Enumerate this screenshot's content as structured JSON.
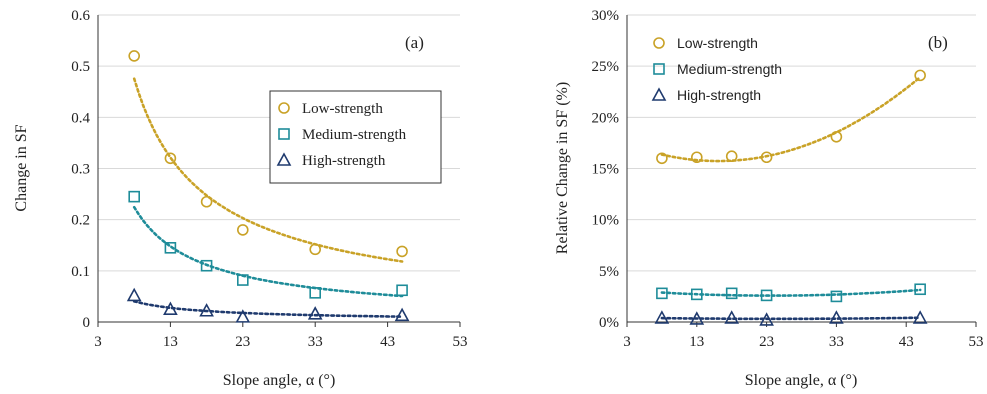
{
  "chart_data": [
    {
      "type": "scatter",
      "panel_label": "(a)",
      "xlabel": "Slope angle, α (°)",
      "ylabel": "Change in SF",
      "xlim": [
        3,
        53
      ],
      "ylim": [
        0,
        0.6
      ],
      "xticks": [
        "3",
        "13",
        "23",
        "33",
        "43",
        "53"
      ],
      "yticks": [
        "0",
        "0.1",
        "0.2",
        "0.3",
        "0.4",
        "0.5",
        "0.6"
      ],
      "legend_position": "center-right",
      "trendlines": "dotted",
      "series": [
        {
          "name": "Low-strength",
          "marker": "circle",
          "color": "#C9A227",
          "x": [
            8,
            13,
            18,
            23,
            33,
            45
          ],
          "y": [
            0.52,
            0.32,
            0.235,
            0.18,
            0.142,
            0.138
          ]
        },
        {
          "name": "Medium-strength",
          "marker": "square",
          "color": "#1E8C99",
          "x": [
            8,
            13,
            18,
            23,
            33,
            45
          ],
          "y": [
            0.245,
            0.145,
            0.11,
            0.082,
            0.057,
            0.062
          ]
        },
        {
          "name": "High-strength",
          "marker": "triangle",
          "color": "#1F3A6E",
          "x": [
            8,
            13,
            18,
            23,
            33,
            45
          ],
          "y": [
            0.052,
            0.025,
            0.022,
            0.01,
            0.016,
            0.013
          ]
        }
      ]
    },
    {
      "type": "scatter",
      "panel_label": "(b)",
      "xlabel": "Slope angle, α (°)",
      "ylabel": "Relative Change in SF (%)",
      "xlim": [
        3,
        53
      ],
      "ylim": [
        0,
        30
      ],
      "xticks": [
        "3",
        "13",
        "23",
        "33",
        "43",
        "53"
      ],
      "yticks": [
        "0%",
        "5%",
        "10%",
        "15%",
        "20%",
        "25%",
        "30%"
      ],
      "legend_position": "top-left",
      "trendlines": "dotted",
      "series": [
        {
          "name": "Low-strength",
          "marker": "circle",
          "color": "#C9A227",
          "x": [
            8,
            13,
            18,
            23,
            33,
            45
          ],
          "y": [
            16.0,
            16.1,
            16.2,
            16.1,
            18.1,
            24.1
          ]
        },
        {
          "name": "Medium-strength",
          "marker": "square",
          "color": "#1E8C99",
          "x": [
            8,
            13,
            18,
            23,
            33,
            45
          ],
          "y": [
            2.8,
            2.7,
            2.8,
            2.6,
            2.5,
            3.2
          ]
        },
        {
          "name": "High-strength",
          "marker": "triangle",
          "color": "#1F3A6E",
          "x": [
            8,
            13,
            18,
            23,
            33,
            45
          ],
          "y": [
            0.4,
            0.3,
            0.4,
            0.2,
            0.4,
            0.4
          ]
        }
      ]
    }
  ]
}
